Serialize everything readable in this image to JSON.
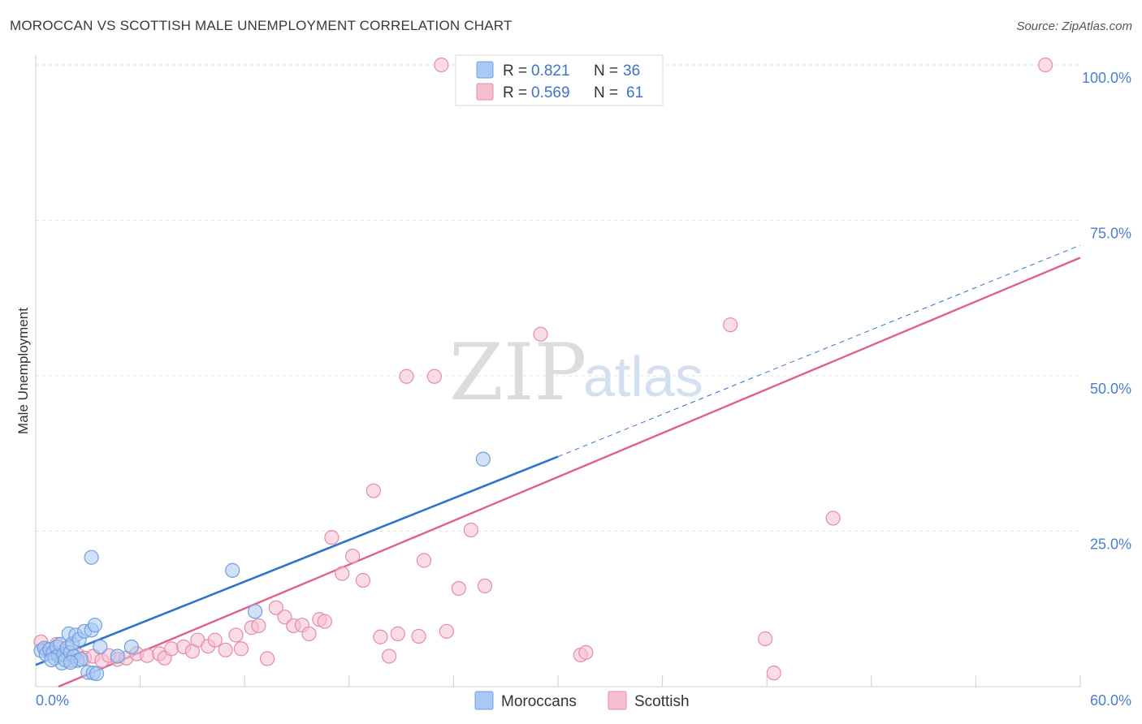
{
  "header": {
    "title": "MOROCCAN VS SCOTTISH MALE UNEMPLOYMENT CORRELATION CHART",
    "source": "Source: ZipAtlas.com"
  },
  "watermark": {
    "zip": "ZIP",
    "atlas": "atlas"
  },
  "colors": {
    "moroccan_fill": "#a9c8f3",
    "moroccan_stroke": "#6f9fe0",
    "moroccan_line": "#2f72cf",
    "scottish_fill": "#f6bfd0",
    "scottish_stroke": "#e88aaa",
    "scottish_line": "#e0608c",
    "grid": "#e2e2e2",
    "tick_text": "#4a7fd0"
  },
  "legend": {
    "rows": [
      {
        "r_label": "R =",
        "r_value": "0.821",
        "n_label": "N =",
        "n_value": "36"
      },
      {
        "r_label": "R =",
        "r_value": "0.569",
        "n_label": "N =",
        "n_value": "61"
      }
    ]
  },
  "bottom_legend": {
    "moroccans": "Moroccans",
    "scottish": "Scottish"
  },
  "chart_data": {
    "type": "scatter",
    "title": "MOROCCAN VS SCOTTISH MALE UNEMPLOYMENT CORRELATION CHART",
    "xlabel": "",
    "ylabel": "Male Unemployment",
    "xlim": [
      0,
      60
    ],
    "ylim": [
      0,
      100
    ],
    "x_ticks": [
      {
        "value": 0,
        "label": "0.0%"
      },
      {
        "value": 60,
        "label": "60.0%"
      }
    ],
    "y_ticks": [
      {
        "value": 25,
        "label": "25.0%"
      },
      {
        "value": 50,
        "label": "50.0%"
      },
      {
        "value": 75,
        "label": "75.0%"
      },
      {
        "value": 100,
        "label": "100.0%"
      }
    ],
    "series": [
      {
        "name": "Moroccans",
        "r": 0.821,
        "n": 36,
        "trend": {
          "x0": 0,
          "y0": 3.5,
          "x1": 30,
          "y1": 37.0,
          "extend_to_x": 60,
          "extend_to_y": 71.0
        },
        "points": [
          [
            0.3,
            5.8
          ],
          [
            0.5,
            6.2
          ],
          [
            0.6,
            5.2
          ],
          [
            0.8,
            6.0
          ],
          [
            1.0,
            5.5
          ],
          [
            1.1,
            4.6
          ],
          [
            1.2,
            6.4
          ],
          [
            1.3,
            5.0
          ],
          [
            1.4,
            6.8
          ],
          [
            1.5,
            3.8
          ],
          [
            1.6,
            5.2
          ],
          [
            1.7,
            4.3
          ],
          [
            1.8,
            6.2
          ],
          [
            1.9,
            8.5
          ],
          [
            2.0,
            5.5
          ],
          [
            2.1,
            6.9
          ],
          [
            2.2,
            4.9
          ],
          [
            2.3,
            8.3
          ],
          [
            2.4,
            4.2
          ],
          [
            2.5,
            7.6
          ],
          [
            2.6,
            4.4
          ],
          [
            2.8,
            8.9
          ],
          [
            3.0,
            2.3
          ],
          [
            3.2,
            9.1
          ],
          [
            3.3,
            2.2
          ],
          [
            3.4,
            9.9
          ],
          [
            3.5,
            2.1
          ],
          [
            3.7,
            6.4
          ],
          [
            3.2,
            20.8
          ],
          [
            4.7,
            4.9
          ],
          [
            5.5,
            6.4
          ],
          [
            11.3,
            18.7
          ],
          [
            12.6,
            12.1
          ],
          [
            25.7,
            36.6
          ],
          [
            0.9,
            4.3
          ],
          [
            2.0,
            3.9
          ]
        ]
      },
      {
        "name": "Scottish",
        "r": 0.569,
        "n": 61,
        "trend": {
          "x0": 1.3,
          "y0": 0.0,
          "x1": 60,
          "y1": 69.0
        },
        "points": [
          [
            0.3,
            7.2
          ],
          [
            0.6,
            6.0
          ],
          [
            0.9,
            5.4
          ],
          [
            1.2,
            6.8
          ],
          [
            1.6,
            5.7
          ],
          [
            2.0,
            4.2
          ],
          [
            2.4,
            5.1
          ],
          [
            2.8,
            4.6
          ],
          [
            3.3,
            4.9
          ],
          [
            3.8,
            4.2
          ],
          [
            4.2,
            5.0
          ],
          [
            4.7,
            4.4
          ],
          [
            5.2,
            4.6
          ],
          [
            5.8,
            5.3
          ],
          [
            6.4,
            5.0
          ],
          [
            7.1,
            5.3
          ],
          [
            7.4,
            4.6
          ],
          [
            7.8,
            6.1
          ],
          [
            8.5,
            6.4
          ],
          [
            9.0,
            5.7
          ],
          [
            9.3,
            7.5
          ],
          [
            9.9,
            6.5
          ],
          [
            10.3,
            7.5
          ],
          [
            10.9,
            5.9
          ],
          [
            11.5,
            8.3
          ],
          [
            11.8,
            6.1
          ],
          [
            12.4,
            9.5
          ],
          [
            12.8,
            9.8
          ],
          [
            13.3,
            4.5
          ],
          [
            13.8,
            12.7
          ],
          [
            14.3,
            11.2
          ],
          [
            14.8,
            9.8
          ],
          [
            15.3,
            9.9
          ],
          [
            15.7,
            8.5
          ],
          [
            16.3,
            10.8
          ],
          [
            16.6,
            10.5
          ],
          [
            17.0,
            24.0
          ],
          [
            17.6,
            18.2
          ],
          [
            18.2,
            21.0
          ],
          [
            18.8,
            17.1
          ],
          [
            19.4,
            31.5
          ],
          [
            19.8,
            8.0
          ],
          [
            20.3,
            4.9
          ],
          [
            20.8,
            8.5
          ],
          [
            21.3,
            49.9
          ],
          [
            22.0,
            8.1
          ],
          [
            22.3,
            20.3
          ],
          [
            22.9,
            49.9
          ],
          [
            23.6,
            8.9
          ],
          [
            24.3,
            15.8
          ],
          [
            25.0,
            25.2
          ],
          [
            25.8,
            16.2
          ],
          [
            29.0,
            56.7
          ],
          [
            31.3,
            5.1
          ],
          [
            31.6,
            5.5
          ],
          [
            39.9,
            58.2
          ],
          [
            41.9,
            7.7
          ],
          [
            42.4,
            2.2
          ],
          [
            45.8,
            27.1
          ],
          [
            23.3,
            100.0
          ],
          [
            58.0,
            100.0
          ]
        ]
      }
    ]
  }
}
